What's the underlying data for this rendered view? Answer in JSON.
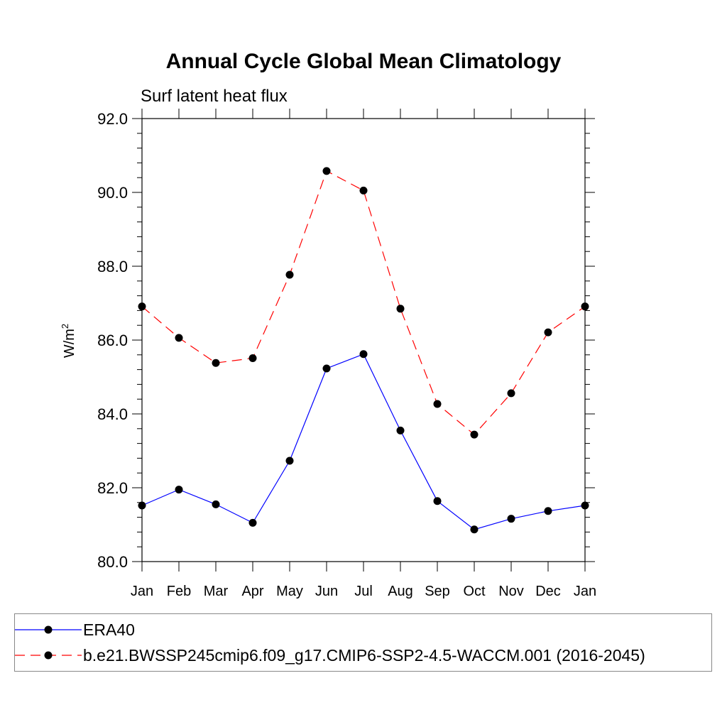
{
  "chart_data": {
    "type": "line",
    "title": "Annual Cycle Global Mean Climatology",
    "subtitle": "Surf latent heat flux",
    "ylabel": "W/m",
    "ylabel_sup": "2",
    "xlabel": "",
    "ylim": [
      80.0,
      92.0
    ],
    "yticks": [
      "80.0",
      "82.0",
      "84.0",
      "86.0",
      "88.0",
      "90.0",
      "92.0"
    ],
    "categories": [
      "Jan",
      "Feb",
      "Mar",
      "Apr",
      "May",
      "Jun",
      "Jul",
      "Aug",
      "Sep",
      "Oct",
      "Nov",
      "Dec",
      "Jan"
    ],
    "series": [
      {
        "name": "ERA40",
        "color": "#0000ff",
        "dash": "solid",
        "values": [
          81.52,
          81.95,
          81.55,
          81.05,
          82.73,
          85.23,
          85.62,
          83.55,
          81.64,
          80.87,
          81.16,
          81.37,
          81.52
        ]
      },
      {
        "name": "b.e21.BWSSP245cmip6.f09_g17.CMIP6-SSP2-4.5-WACCM.001 (2016-2045)",
        "color": "#ff0000",
        "dash": "dashed",
        "values": [
          86.91,
          86.06,
          85.38,
          85.51,
          87.77,
          90.58,
          90.05,
          86.85,
          84.27,
          83.44,
          84.56,
          86.21,
          86.91
        ]
      }
    ],
    "legend_position": "bottom"
  }
}
